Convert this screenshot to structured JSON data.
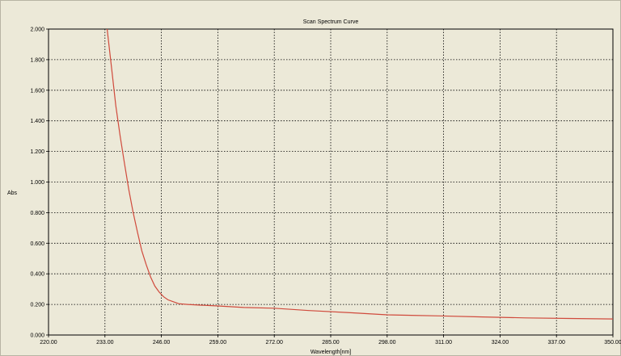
{
  "chart_data": {
    "type": "line",
    "title": "Scan Spectrum Curve",
    "xlabel": "Wavelength[nm]",
    "ylabel": "Abs",
    "xlim": [
      220,
      350
    ],
    "ylim": [
      0,
      2
    ],
    "x_ticks": [
      "220.00",
      "233.00",
      "246.00",
      "259.00",
      "272.00",
      "285.00",
      "298.00",
      "311.00",
      "324.00",
      "337.00",
      "350.00"
    ],
    "y_ticks": [
      "2.000",
      "1.800",
      "1.600",
      "1.400",
      "1.200",
      "1.000",
      "0.800",
      "0.600",
      "0.400",
      "0.200",
      "0.000"
    ],
    "grid": true,
    "series": [
      {
        "color": "#d04a3c",
        "x": [
          233.5,
          234.5,
          235.5,
          236.5,
          237.5,
          238.5,
          239.5,
          240.5,
          241.5,
          242.5,
          243.5,
          244.5,
          245.5,
          246.5,
          247.5,
          248.5,
          250,
          252,
          255,
          259,
          265,
          272,
          280,
          290,
          298,
          310,
          320,
          330,
          340,
          350
        ],
        "y": [
          2.0,
          1.75,
          1.5,
          1.3,
          1.12,
          0.95,
          0.8,
          0.67,
          0.55,
          0.46,
          0.38,
          0.32,
          0.28,
          0.25,
          0.23,
          0.22,
          0.205,
          0.2,
          0.195,
          0.19,
          0.18,
          0.175,
          0.16,
          0.145,
          0.132,
          0.125,
          0.118,
          0.112,
          0.108,
          0.105
        ]
      }
    ]
  }
}
